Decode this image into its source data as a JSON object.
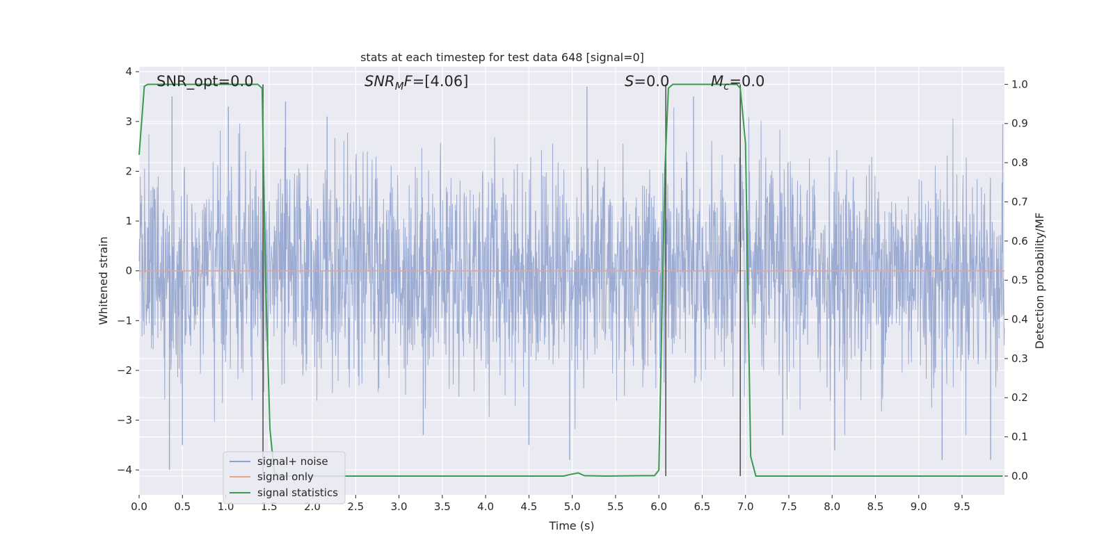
{
  "chart_data": {
    "type": "line",
    "title": "stats at each timestep for test data 648 [signal=0]",
    "xlabel": "Time (s)",
    "ylabel": "Whitened strain",
    "y2label": "Detection probability/MF",
    "xlim": [
      0.0,
      9.99
    ],
    "ylim": [
      -4.5,
      4.1
    ],
    "y2lim": [
      -0.048,
      1.045
    ],
    "xticks": [
      0.0,
      0.5,
      1.0,
      1.5,
      2.0,
      2.5,
      3.0,
      3.5,
      4.0,
      4.5,
      5.0,
      5.5,
      6.0,
      6.5,
      7.0,
      7.5,
      8.0,
      8.5,
      9.0,
      9.5
    ],
    "xtick_labels": [
      "0.0",
      "0.5",
      "1.0",
      "1.5",
      "2.0",
      "2.5",
      "3.0",
      "3.5",
      "4.0",
      "4.5",
      "5.0",
      "5.5",
      "6.0",
      "6.5",
      "7.0",
      "7.5",
      "8.0",
      "8.5",
      "9.0",
      "9.5"
    ],
    "yticks": [
      -4,
      -3,
      -2,
      -1,
      0,
      1,
      2,
      3,
      4
    ],
    "ytick_labels": [
      "−4",
      "−3",
      "−2",
      "−1",
      "0",
      "1",
      "2",
      "3",
      "4"
    ],
    "y2ticks": [
      0.0,
      0.1,
      0.2,
      0.3,
      0.4,
      0.5,
      0.6,
      0.7,
      0.8,
      0.9,
      1.0
    ],
    "y2tick_labels": [
      "0.0",
      "0.1",
      "0.2",
      "0.3",
      "0.4",
      "0.5",
      "0.6",
      "0.7",
      "0.8",
      "0.9",
      "1.0"
    ],
    "grid": true,
    "legend": {
      "placement": "lower-left",
      "entries": [
        {
          "label": "signal+ noise",
          "color": "#8da0cb"
        },
        {
          "label": "signal only",
          "color": "#e8a58c"
        },
        {
          "label": "signal statistics",
          "color": "#3a9a4f"
        }
      ]
    },
    "annotations": {
      "snr_opt": {
        "prefix": "SNR_opt",
        "value": "=0.0"
      },
      "snr_mf": {
        "base": "SNR",
        "sub": "M",
        "suffix": "F",
        "value": "=[4.06]"
      },
      "s": {
        "base": "S",
        "value": "=0.0"
      },
      "mc": {
        "base": "M",
        "sub": "c",
        "value": "=0.0"
      }
    },
    "vertical_lines_x": [
      1.43,
      6.08,
      6.94
    ],
    "series": [
      {
        "name": "signal+ noise",
        "axis": "left",
        "color": "#8da0cb",
        "description": "dense whitened noise, range approximately -4.0 to 3.7",
        "peak_points": [
          {
            "x": 0.35,
            "y": -4.0
          },
          {
            "x": 0.38,
            "y": 3.5
          },
          {
            "x": 0.5,
            "y": -3.5
          },
          {
            "x": 1.03,
            "y": 3.3
          },
          {
            "x": 1.43,
            "y": -2.8
          },
          {
            "x": 1.69,
            "y": 3.4
          },
          {
            "x": 2.17,
            "y": 3.1
          },
          {
            "x": 3.28,
            "y": -3.3
          },
          {
            "x": 4.5,
            "y": -3.5
          },
          {
            "x": 4.97,
            "y": -3.8
          },
          {
            "x": 5.17,
            "y": 3.7
          },
          {
            "x": 6.4,
            "y": 3.5
          },
          {
            "x": 7.43,
            "y": -3.3
          },
          {
            "x": 8.03,
            "y": -3.6
          },
          {
            "x": 9.27,
            "y": -3.8
          },
          {
            "x": 9.83,
            "y": -3.8
          }
        ]
      },
      {
        "name": "signal only",
        "axis": "left",
        "color": "#e8a58c",
        "x": [
          0.0,
          9.99
        ],
        "y": [
          0.0,
          0.0
        ]
      },
      {
        "name": "signal statistics",
        "axis": "right",
        "color": "#3a9a4f",
        "x": [
          0.0,
          0.06,
          0.1,
          0.5,
          1.0,
          1.37,
          1.42,
          1.46,
          1.51,
          1.56,
          1.62,
          2.0,
          3.0,
          4.0,
          4.9,
          4.98,
          5.07,
          5.14,
          5.4,
          5.8,
          5.95,
          6.0,
          6.03,
          6.07,
          6.11,
          6.16,
          6.5,
          6.9,
          6.94,
          7.0,
          7.06,
          7.12,
          7.5,
          8.0,
          9.0,
          9.97
        ],
        "y": [
          0.82,
          0.995,
          1.0,
          1.0,
          1.0,
          1.0,
          0.99,
          0.5,
          0.12,
          0.01,
          0.0,
          0.0,
          0.0,
          0.0,
          0.0,
          0.004,
          0.008,
          0.001,
          0.0,
          0.001,
          0.001,
          0.015,
          0.35,
          0.78,
          0.99,
          1.0,
          1.0,
          1.0,
          0.99,
          0.85,
          0.05,
          0.0,
          0.0,
          0.0,
          0.0,
          0.0
        ]
      }
    ]
  }
}
